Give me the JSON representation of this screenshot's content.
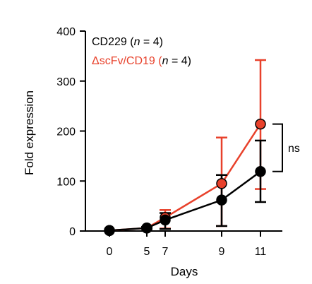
{
  "chart_data": {
    "type": "line",
    "title": "",
    "xlabel": "Days",
    "ylabel": "Fold expression",
    "x": [
      0,
      5,
      7,
      9,
      11
    ],
    "x_tick_labels": [
      "0",
      "5",
      "7",
      "9",
      "11"
    ],
    "ylim": [
      0,
      400
    ],
    "y_ticks": [
      0,
      100,
      200,
      300,
      400
    ],
    "y_tick_labels": [
      "0",
      "100",
      "200",
      "300",
      "400"
    ],
    "grid": false,
    "legend_position": "top-left",
    "series": [
      {
        "name": "ΔscFv/CD19 (n = 4)",
        "legend_prefix": "ΔscFv/CD19 (",
        "legend_italic": "n",
        "legend_suffix": " = 4)",
        "color": "#e8412b",
        "values": [
          1,
          6,
          27,
          95,
          214
        ],
        "error_low": [
          0,
          2,
          22,
          85,
          130
        ],
        "error_high": [
          0,
          2,
          15,
          92,
          128
        ]
      },
      {
        "name": "CD229 (n = 4)",
        "legend_prefix": "CD229 (",
        "legend_italic": "n",
        "legend_suffix": " = 4)",
        "color": "#000000",
        "values": [
          1,
          6,
          22,
          62,
          119
        ],
        "error_low": [
          0,
          2,
          18,
          52,
          61
        ],
        "error_high": [
          0,
          2,
          14,
          50,
          62
        ]
      }
    ],
    "annotation": "ns"
  }
}
